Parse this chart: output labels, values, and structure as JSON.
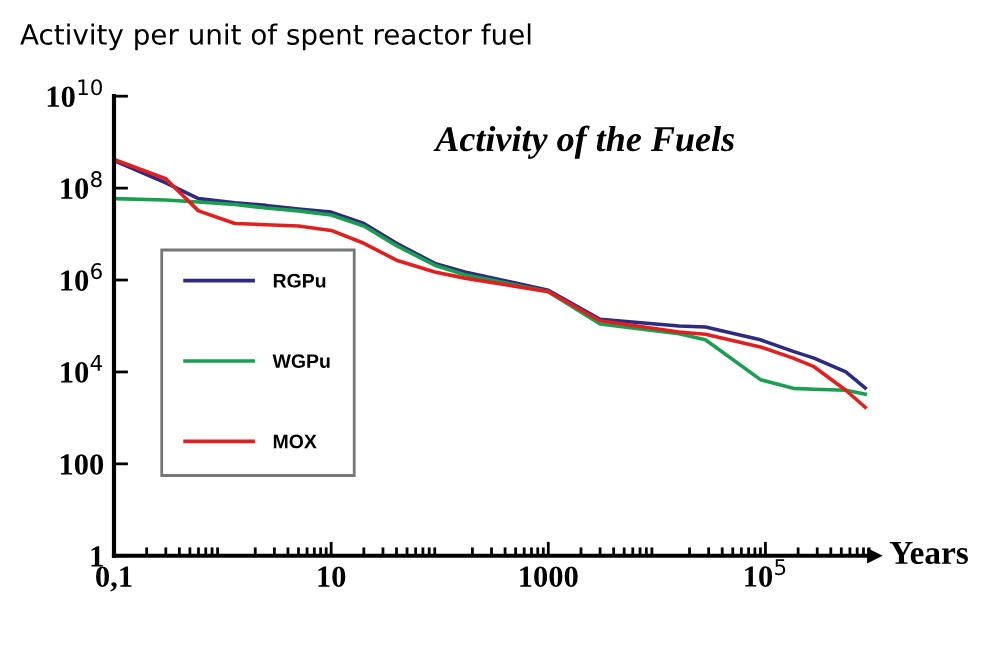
{
  "chart_data": {
    "type": "line",
    "title": "Activity of the Fuels",
    "ylabel": "Activity per unit of spent reactor fuel",
    "xlabel": "Years",
    "log": "xy",
    "legend": "center left",
    "grid": false,
    "marker": "none",
    "line_style": "solid",
    "xlim": [
      0.1,
      1000000
    ],
    "ylim": [
      1,
      10000000000
    ],
    "xticks": [
      {
        "value": 0.1,
        "label": "0,1"
      },
      10,
      1000,
      {
        "value": 100000,
        "label": "10$^{5}$"
      }
    ],
    "yticks": [
      1,
      100,
      {
        "value": 10000,
        "label": "10$^{4}$"
      },
      {
        "value": 1000000,
        "label": "10$^{6}$"
      },
      {
        "value": 100000000,
        "label": "10$^{8}$"
      },
      {
        "value": 10000000000,
        "label": "10$^{10}$"
      }
    ],
    "x": [
      0.1,
      0.3,
      0.6,
      1.3,
      2.5,
      5,
      10,
      20,
      40,
      90,
      170,
      1000,
      3000,
      16000,
      28000,
      90000,
      180000,
      280000,
      550000,
      830000
    ],
    "series": [
      {
        "name": "RGPu",
        "color": "#2e2a7f",
        "values": [
          400000000,
          130000000,
          59000000,
          48000000,
          42000000,
          35000000,
          30000000,
          17000000,
          6300000,
          2300000,
          1500000,
          600000,
          140000,
          100000,
          95000,
          50000,
          28000,
          20000,
          10000,
          4500
        ]
      },
      {
        "name": "WGPu",
        "color": "#1a9e50",
        "values": [
          59000000,
          55000000,
          50000000,
          44000000,
          37000000,
          32000000,
          26000000,
          15000000,
          5600000,
          2100000,
          1300000,
          560000,
          110000,
          68000,
          50000,
          6800,
          4400,
          4200,
          4000,
          3300
        ]
      },
      {
        "name": "MOX",
        "color": "#e02020",
        "values": [
          420000000,
          160000000,
          32000000,
          17000000,
          16000000,
          15000000,
          12000000,
          6300000,
          2700000,
          1500000,
          1100000,
          560000,
          130000,
          74000,
          66000,
          35000,
          20000,
          13000,
          4000,
          1700
        ]
      }
    ]
  }
}
